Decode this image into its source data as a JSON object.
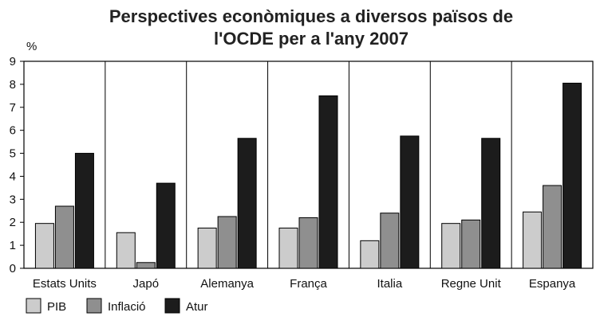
{
  "chart_data": {
    "type": "bar",
    "title_lines": [
      "Perspectives econòmiques a diversos països de",
      "l'OCDE per a l'any 2007"
    ],
    "ylabel": "%",
    "xlabel": "",
    "ylim": [
      0,
      9
    ],
    "yticks": [
      "0",
      "1",
      "2",
      "3",
      "4",
      "5",
      "6",
      "7",
      "8",
      "9"
    ],
    "grid": "vertical category separators",
    "legend_position": "bottom-left",
    "categories": [
      "Estats Units",
      "Japó",
      "Alemanya",
      "França",
      "Italia",
      "Regne Unit",
      "Espanya"
    ],
    "series": [
      {
        "name": "PIB",
        "color": "#cccccc",
        "values": [
          1.95,
          1.55,
          1.75,
          1.75,
          1.2,
          1.95,
          2.45
        ]
      },
      {
        "name": "Inflació",
        "color": "#8f8f8f",
        "values": [
          2.7,
          0.25,
          2.25,
          2.2,
          2.4,
          2.1,
          3.6
        ]
      },
      {
        "name": "Atur",
        "color": "#1c1c1c",
        "values": [
          5.0,
          3.7,
          5.65,
          7.5,
          5.75,
          5.65,
          8.05
        ]
      }
    ]
  }
}
